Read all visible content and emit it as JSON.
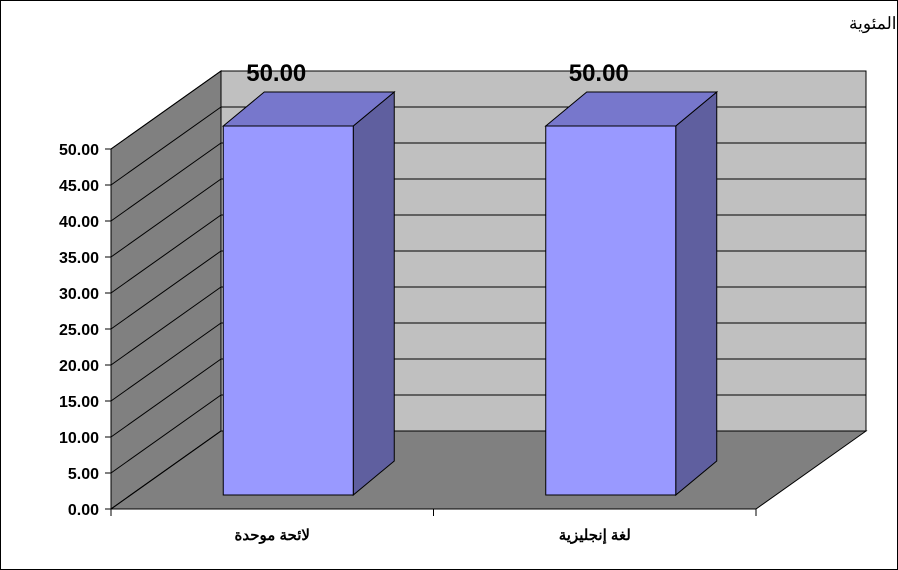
{
  "chart_data": {
    "type": "bar",
    "three_d": true,
    "categories": [
      "لائحة موحدة",
      "لغة إنجليزية"
    ],
    "values": [
      50.0,
      50.0
    ],
    "data_labels": [
      "50.00",
      "50.00"
    ],
    "ylabel": "النسبة المئوية",
    "ylim": [
      0,
      50
    ],
    "y_ticks": [
      "0.00",
      "5.00",
      "10.00",
      "15.00",
      "20.00",
      "25.00",
      "30.00",
      "35.00",
      "40.00",
      "45.00",
      "50.00"
    ],
    "grid": true,
    "legend": "none",
    "colors": {
      "bar_front": "#9999ff",
      "bar_side": "#5f5f9f",
      "bar_top": "#7777cc",
      "back_wall": "#c0c0c0",
      "side_wall": "#808080",
      "floor": "#808080"
    }
  }
}
